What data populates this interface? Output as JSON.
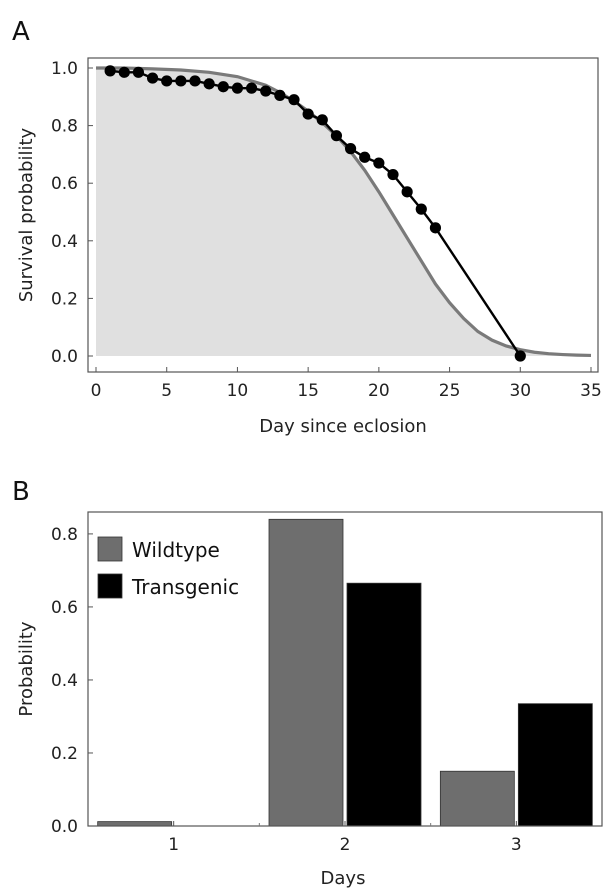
{
  "chart_data": [
    {
      "panel": "A",
      "type": "line",
      "xlabel": "Day since eclosion",
      "ylabel": "Survival probability",
      "xlim": [
        0,
        35
      ],
      "ylim": [
        0,
        1
      ],
      "xticks": [
        0,
        5,
        10,
        15,
        20,
        25,
        30,
        35
      ],
      "yticks": [
        0.0,
        0.2,
        0.4,
        0.6,
        0.8,
        1.0
      ],
      "ytick_labels": [
        "0.0",
        "0.2",
        "0.4",
        "0.6",
        "0.8",
        "1.0"
      ],
      "observed": {
        "x": [
          1,
          2,
          3,
          4,
          5,
          6,
          7,
          8,
          9,
          10,
          11,
          12,
          13,
          14,
          15,
          16,
          17,
          18,
          19,
          20,
          21,
          22,
          23,
          24,
          30
        ],
        "y": [
          0.99,
          0.985,
          0.985,
          0.965,
          0.955,
          0.955,
          0.955,
          0.945,
          0.935,
          0.93,
          0.93,
          0.92,
          0.905,
          0.89,
          0.84,
          0.82,
          0.765,
          0.72,
          0.69,
          0.67,
          0.63,
          0.57,
          0.51,
          0.445,
          0.0
        ],
        "color": "#000000"
      },
      "fitted": {
        "x": [
          0,
          2,
          4,
          6,
          8,
          10,
          12,
          13,
          14,
          15,
          16,
          17,
          18,
          19,
          20,
          21,
          22,
          23,
          24,
          25,
          26,
          27,
          28,
          29,
          30,
          31,
          32,
          33,
          34,
          35
        ],
        "y": [
          1.0,
          1.0,
          0.997,
          0.993,
          0.985,
          0.97,
          0.94,
          0.915,
          0.885,
          0.85,
          0.81,
          0.765,
          0.71,
          0.645,
          0.57,
          0.49,
          0.41,
          0.33,
          0.25,
          0.185,
          0.13,
          0.085,
          0.055,
          0.035,
          0.022,
          0.013,
          0.008,
          0.005,
          0.003,
          0.002
        ],
        "color": "#7a7a7a",
        "fill": "#e0e0e0"
      }
    },
    {
      "panel": "B",
      "type": "bar",
      "xlabel": "Days",
      "ylabel": "Probability",
      "categories": [
        "1",
        "2",
        "3"
      ],
      "ylim": [
        0,
        0.86
      ],
      "yticks": [
        0.0,
        0.2,
        0.4,
        0.6,
        0.8
      ],
      "ytick_labels": [
        "0.0",
        "0.2",
        "0.4",
        "0.6",
        "0.8"
      ],
      "legend_position": "top-left",
      "series": [
        {
          "name": "Wildtype",
          "values": [
            0.012,
            0.84,
            0.15
          ],
          "color": "#6e6e6e"
        },
        {
          "name": "Transgenic",
          "values": [
            0.0,
            0.665,
            0.335
          ],
          "color": "#000000"
        }
      ]
    }
  ]
}
